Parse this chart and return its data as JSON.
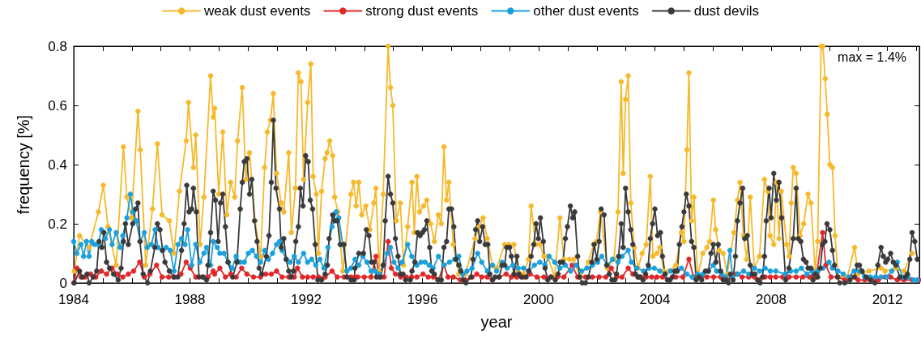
{
  "chart_data": {
    "type": "line",
    "xlabel": "year",
    "ylabel": "frequency [%]",
    "annotations": [
      "max = 1.4%"
    ],
    "legend": "top",
    "marker": "circle",
    "xlim": [
      1984,
      2013.1
    ],
    "ylim": [
      0,
      0.8
    ],
    "xticks": [
      1984,
      {
        "value": 1985,
        "label": null
      },
      {
        "value": 1986,
        "label": null
      },
      {
        "value": 1987,
        "label": null
      },
      1988,
      {
        "value": 1989,
        "label": null
      },
      {
        "value": 1990,
        "label": null
      },
      {
        "value": 1991,
        "label": null
      },
      1992,
      {
        "value": 1993,
        "label": null
      },
      {
        "value": 1994,
        "label": null
      },
      {
        "value": 1995,
        "label": null
      },
      1996,
      {
        "value": 1997,
        "label": null
      },
      {
        "value": 1998,
        "label": null
      },
      {
        "value": 1999,
        "label": null
      },
      2000,
      {
        "value": 2001,
        "label": null
      },
      {
        "value": 2002,
        "label": null
      },
      {
        "value": 2003,
        "label": null
      },
      2004,
      {
        "value": 2005,
        "label": null
      },
      {
        "value": 2006,
        "label": null
      },
      {
        "value": 2007,
        "label": null
      },
      2008,
      {
        "value": 2009,
        "label": null
      },
      {
        "value": 2010,
        "label": null
      },
      {
        "value": 2011,
        "label": null
      },
      2012,
      {
        "value": 2013,
        "label": null
      }
    ],
    "yticks": [
      0,
      0.2,
      0.4,
      0.6,
      0.8
    ],
    "series": [
      {
        "name": "weak dust events",
        "color": "#f6b92c",
        "x": [
          1984.02,
          1984.2,
          1984.53,
          1984.85,
          1985.02,
          1985.18,
          1985.46,
          1985.71,
          1985.83,
          1985.99,
          1986.21,
          1986.29,
          1986.48,
          1986.71,
          1986.88,
          1987.04,
          1987.29,
          1987.45,
          1987.64,
          1987.87,
          1987.95,
          1988.12,
          1988.2,
          1988.35,
          1988.48,
          1988.71,
          1988.8,
          1988.85,
          1988.99,
          1989.13,
          1989.27,
          1989.4,
          1989.54,
          1989.64,
          1989.8,
          1989.92,
          1990.05,
          1990.24,
          1990.43,
          1990.57,
          1990.66,
          1990.77,
          1990.87,
          1990.98,
          1991.14,
          1991.23,
          1991.4,
          1991.49,
          1991.63,
          1991.73,
          1991.82,
          1991.91,
          1992.05,
          1992.16,
          1992.24,
          1992.35,
          1992.42,
          1992.53,
          1992.65,
          1992.72,
          1992.81,
          1992.91,
          1992.98,
          1993.09,
          1993.26,
          1993.54,
          1993.63,
          1993.72,
          1993.81,
          1993.91,
          1994.05,
          1994.19,
          1994.33,
          1994.4,
          1994.51,
          1994.65,
          1994.82,
          1994.9,
          1994.98,
          1995.1,
          1995.24,
          1995.35,
          1995.49,
          1995.64,
          1995.72,
          1995.81,
          1995.9,
          1996.04,
          1996.15,
          1996.28,
          1996.41,
          1996.55,
          1996.65,
          1996.74,
          1996.83,
          1996.91,
          1997.06,
          1997.25,
          1997.48,
          1997.81,
          1997.95,
          1998.09,
          1998.23,
          1998.41,
          1998.55,
          1998.83,
          1998.97,
          1999.15,
          1999.29,
          1999.48,
          1999.65,
          1999.74,
          1999.9,
          2000.04,
          2000.18,
          2000.31,
          2000.55,
          2000.73,
          2000.87,
          2001.06,
          2001.2,
          2001.43,
          2001.71,
          2001.89,
          2001.99,
          2002.13,
          2002.36,
          2002.59,
          2002.73,
          2002.84,
          2002.91,
          2002.99,
          2003.08,
          2003.17,
          2003.29,
          2003.42,
          2003.56,
          2003.7,
          2003.84,
          2003.93,
          2004.07,
          2004.17,
          2004.31,
          2004.49,
          2004.72,
          2004.91,
          2005,
          2005.1,
          2005.17,
          2005.26,
          2005.34,
          2005.47,
          2005.65,
          2005.79,
          2005.88,
          2006.01,
          2006.09,
          2006.21,
          2006.35,
          2006.49,
          2006.72,
          2006.84,
          2006.93,
          2007.05,
          2007.16,
          2007.28,
          2007.42,
          2007.6,
          2007.77,
          2007.88,
          2007.96,
          2008.09,
          2008.18,
          2008.27,
          2008.35,
          2008.53,
          2008.62,
          2008.69,
          2008.76,
          2008.86,
          2009,
          2009.12,
          2009.27,
          2009.37,
          2009.51,
          2009.6,
          2009.72,
          2009.78,
          2009.86,
          2009.93,
          2010.02,
          2010.11,
          2010.2,
          2010.3,
          2010.62,
          2010.87,
          2010.99,
          2011.36,
          2011.78,
          2011.92,
          2012.29,
          2012.57,
          2012.85
        ],
        "values": [
          0.04,
          0.16,
          0.12,
          0.24,
          0.33,
          0.19,
          0.06,
          0.46,
          0.29,
          0.22,
          0.58,
          0.45,
          0.06,
          0.25,
          0.47,
          0.23,
          0.21,
          0.1,
          0.31,
          0.48,
          0.61,
          0.39,
          0.5,
          0.13,
          0.29,
          0.7,
          0.56,
          0.59,
          0.3,
          0.51,
          0.23,
          0.34,
          0.29,
          0.48,
          0.66,
          0.35,
          0.44,
          0.21,
          0.09,
          0.39,
          0.51,
          0.55,
          0.64,
          0.37,
          0.27,
          0.24,
          0.44,
          0.17,
          0.32,
          0.71,
          0.68,
          0.35,
          0.61,
          0.74,
          0.36,
          0.3,
          0.1,
          0.31,
          0.42,
          0.44,
          0.48,
          0.43,
          0.29,
          0.24,
          0.04,
          0.3,
          0.34,
          0.26,
          0.34,
          0.23,
          0.26,
          0.18,
          0.27,
          0.32,
          0.04,
          0.3,
          0.8,
          0.66,
          0.6,
          0.21,
          0.27,
          0.06,
          0.19,
          0.34,
          0.17,
          0.36,
          0.24,
          0.26,
          0.28,
          0.2,
          0.14,
          0.23,
          0.2,
          0.46,
          0.28,
          0.34,
          0.13,
          0.03,
          0.03,
          0.15,
          0.19,
          0.22,
          0.15,
          0.06,
          0.05,
          0.13,
          0.13,
          0.13,
          0.04,
          0.03,
          0.08,
          0.26,
          0.13,
          0.13,
          0.09,
          0.09,
          0.02,
          0.22,
          0.08,
          0.08,
          0.08,
          0.02,
          0.07,
          0.13,
          0.14,
          0.24,
          0.05,
          0.08,
          0.24,
          0.68,
          0.37,
          0.62,
          0.7,
          0.27,
          0.12,
          0.05,
          0.1,
          0.13,
          0.36,
          0.09,
          0.1,
          0.12,
          0.04,
          0.04,
          0.06,
          0.17,
          0.14,
          0.45,
          0.71,
          0.21,
          0.29,
          0.02,
          0.1,
          0.12,
          0.14,
          0.28,
          0.18,
          0.11,
          0.1,
          0.03,
          0.17,
          0.28,
          0.34,
          0.16,
          0.08,
          0.29,
          0.05,
          0.09,
          0.35,
          0.31,
          0.16,
          0.13,
          0.34,
          0.15,
          0.31,
          0.13,
          0.09,
          0.27,
          0.39,
          0.37,
          0.16,
          0.2,
          0.3,
          0.27,
          0.04,
          0.14,
          0.8,
          0.8,
          0.69,
          0.57,
          0.4,
          0.39,
          0.16,
          0.02,
          0.02,
          0.12,
          0.03,
          0.04,
          0.05,
          0.04,
          0.05,
          0.04,
          0.1
        ]
      },
      {
        "name": "strong dust events",
        "color": "#e0282a",
        "x": [
          1984,
          1984.11,
          1984.25,
          1984.39,
          1984.58,
          1984.76,
          1984.95,
          1985.13,
          1985.32,
          1985.5,
          1985.69,
          1985.88,
          1986.06,
          1986.27,
          1986.43,
          1986.62,
          1986.85,
          1987.04,
          1987.27,
          1987.45,
          1987.69,
          1987.87,
          1988.01,
          1988.2,
          1988.43,
          1988.62,
          1988.8,
          1988.85,
          1989.03,
          1989.22,
          1989.4,
          1989.59,
          1989.78,
          1989.96,
          1990.19,
          1990.43,
          1990.61,
          1990.8,
          1990.98,
          1991.17,
          1991.4,
          1991.59,
          1991.7,
          1991.87,
          1992.05,
          1992.24,
          1992.42,
          1992.65,
          1992.89,
          1993.07,
          1993.3,
          1993.54,
          1993.68,
          1993.77,
          1994,
          1994.23,
          1994.4,
          1994.51,
          1994.68,
          1994.82,
          1994.93,
          1995.07,
          1995.25,
          1995.44,
          1995.63,
          1995.81,
          1996.02,
          1996.2,
          1996.37,
          1996.55,
          1996.74,
          1996.88,
          1997.06,
          1997.3,
          1997.48,
          1997.71,
          1997.87,
          1998.04,
          1998.23,
          1998.41,
          1998.64,
          1998.88,
          1999.06,
          1999.25,
          1999.48,
          1999.71,
          1999.94,
          2000.18,
          2000.41,
          2000.64,
          2000.87,
          2001.15,
          2001.34,
          2001.61,
          2001.85,
          2002.08,
          2002.31,
          2002.5,
          2002.68,
          2002.87,
          2003.08,
          2003.24,
          2003.42,
          2003.52,
          2003.7,
          2003.89,
          2004.07,
          2004.26,
          2004.49,
          2004.72,
          2004.96,
          2005.17,
          2005.33,
          2005.56,
          2005.79,
          2006.02,
          2006.26,
          2006.44,
          2006.63,
          2006.81,
          2007,
          2007.23,
          2007.42,
          2007.6,
          2007.79,
          2007.97,
          2008.16,
          2008.39,
          2008.62,
          2008.86,
          2009.09,
          2009.32,
          2009.55,
          2009.77,
          2009.88,
          2010.06,
          2010.3,
          2010.53,
          2010.76,
          2010.99,
          2011.22,
          2011.46,
          2011.69,
          2011.92,
          2012.11,
          2012.34,
          2012.57,
          2012.85,
          2013.08
        ],
        "values": [
          0,
          0.05,
          0.02,
          0.02,
          0.03,
          0.02,
          0.04,
          0.03,
          0.05,
          0.03,
          0.02,
          0.03,
          0.04,
          0.07,
          0.02,
          0.03,
          0.06,
          0.02,
          0.02,
          0.02,
          0.03,
          0.07,
          0.05,
          0.02,
          0.02,
          0.02,
          0.04,
          0.03,
          0.05,
          0.02,
          0.03,
          0.02,
          0.05,
          0.03,
          0.02,
          0.02,
          0.03,
          0.03,
          0.04,
          0.02,
          0.02,
          0.02,
          0.05,
          0.02,
          0.02,
          0.02,
          0.02,
          0.02,
          0.04,
          0.02,
          0.02,
          0.02,
          0.02,
          0.02,
          0.02,
          0.02,
          0.09,
          0.02,
          0.02,
          0.14,
          0.05,
          0.03,
          0.02,
          0.02,
          0.02,
          0.02,
          0.03,
          0.02,
          0.02,
          0.01,
          0.06,
          0.02,
          0.02,
          0.01,
          0.01,
          0.02,
          0.03,
          0.02,
          0.02,
          0.01,
          0.02,
          0.03,
          0.02,
          0.02,
          0.02,
          0.03,
          0.02,
          0.02,
          0.02,
          0.02,
          0.02,
          0.06,
          0.02,
          0.02,
          0.02,
          0.02,
          0.02,
          0.05,
          0.02,
          0.02,
          0.05,
          0.03,
          0.02,
          0.02,
          0.02,
          0.02,
          0.02,
          0.02,
          0.01,
          0.02,
          0.02,
          0.08,
          0.02,
          0.02,
          0.02,
          0.02,
          0.02,
          0.01,
          0.02,
          0.03,
          0.02,
          0.02,
          0.02,
          0.01,
          0.02,
          0.02,
          0.02,
          0.02,
          0.02,
          0.02,
          0.02,
          0.02,
          0.02,
          0.17,
          0.06,
          0.02,
          0.02,
          0.01,
          0.02,
          0.01,
          0.01,
          0.01,
          0.01,
          0.02,
          0.02,
          0.01,
          0.01,
          0.01,
          0.01
        ]
      },
      {
        "name": "other dust events",
        "color": "#1aa0dc",
        "x": [
          1984,
          1984.11,
          1984.25,
          1984.34,
          1984.44,
          1984.53,
          1984.62,
          1984.72,
          1984.85,
          1984.95,
          1985.09,
          1985.23,
          1985.32,
          1985.46,
          1985.6,
          1985.69,
          1985.83,
          1985.95,
          1986.04,
          1986.15,
          1986.29,
          1986.43,
          1986.53,
          1986.67,
          1986.8,
          1986.9,
          1987.04,
          1987.18,
          1987.32,
          1987.45,
          1987.59,
          1987.71,
          1987.83,
          1987.92,
          1988.06,
          1988.2,
          1988.34,
          1988.48,
          1988.57,
          1988.71,
          1988.8,
          1988.94,
          1989.03,
          1989.17,
          1989.31,
          1989.45,
          1989.59,
          1989.73,
          1989.87,
          1990.01,
          1990.15,
          1990.29,
          1990.43,
          1990.57,
          1990.7,
          1990.84,
          1990.98,
          1991.08,
          1991.17,
          1991.31,
          1991.45,
          1991.59,
          1991.73,
          1991.91,
          1992.05,
          1992.19,
          1992.33,
          1992.47,
          1992.61,
          1992.75,
          1992.89,
          1993.03,
          1993.12,
          1993.26,
          1993.4,
          1993.54,
          1993.68,
          1993.81,
          1993.95,
          1994.09,
          1994.23,
          1994.37,
          1994.51,
          1994.65,
          1994.79,
          1994.9,
          1995.02,
          1995.16,
          1995.3,
          1995.49,
          1995.63,
          1995.81,
          1995.95,
          1996.09,
          1996.23,
          1996.37,
          1996.55,
          1996.74,
          1996.93,
          1997.11,
          1997.25,
          1997.39,
          1997.53,
          1997.71,
          1997.9,
          1998.04,
          1998.23,
          1998.41,
          1998.55,
          1998.74,
          1998.92,
          1999.11,
          1999.29,
          1999.48,
          1999.66,
          1999.85,
          2000.04,
          2000.22,
          2000.36,
          2000.55,
          2000.73,
          2000.92,
          2001.1,
          2001.29,
          2001.48,
          2001.66,
          2001.85,
          2002.03,
          2002.17,
          2002.36,
          2002.54,
          2002.73,
          2002.87,
          2003.08,
          2003.19,
          2003.38,
          2003.61,
          2003.8,
          2003.98,
          2004.17,
          2004.35,
          2004.54,
          2004.72,
          2004.91,
          2005.1,
          2005.28,
          2005.47,
          2005.65,
          2005.84,
          2006.01,
          2006.12,
          2006.3,
          2006.44,
          2006.58,
          2006.67,
          2006.86,
          2007.05,
          2007.23,
          2007.42,
          2007.6,
          2007.79,
          2007.97,
          2008.16,
          2008.48,
          2008.67,
          2008.86,
          2009.04,
          2009.23,
          2009.41,
          2009.6,
          2009.78,
          2009.99,
          2010.11,
          2010.3,
          2010.48,
          2010.67,
          2010.85,
          2011.04,
          2011.22,
          2011.41,
          2011.6,
          2011.78,
          2011.97,
          2012.15,
          2012.34,
          2012.52,
          2012.71,
          2012.9,
          2013.03
        ],
        "values": [
          0.14,
          0.1,
          0.13,
          0.09,
          0.14,
          0.09,
          0.14,
          0.13,
          0.13,
          0.18,
          0.15,
          0.18,
          0.13,
          0.17,
          0.12,
          0.16,
          0.22,
          0.3,
          0.24,
          0.21,
          0.14,
          0.17,
          0.12,
          0.13,
          0.18,
          0.12,
          0.11,
          0.12,
          0.11,
          0.04,
          0.13,
          0.15,
          0.13,
          0.18,
          0.06,
          0.13,
          0.07,
          0.1,
          0.12,
          0.06,
          0.14,
          0.12,
          0.1,
          0.1,
          0.07,
          0.05,
          0.09,
          0.07,
          0.07,
          0.1,
          0.11,
          0.09,
          0.07,
          0.11,
          0.08,
          0.1,
          0.13,
          0.14,
          0.11,
          0.08,
          0.07,
          0.09,
          0.07,
          0.1,
          0.07,
          0.08,
          0.06,
          0.08,
          0.05,
          0.12,
          0.19,
          0.24,
          0.22,
          0.13,
          0.04,
          0.05,
          0.08,
          0.06,
          0.09,
          0.07,
          0.04,
          0.04,
          0.03,
          0.06,
          0.1,
          0.12,
          0.07,
          0.05,
          0.07,
          0.13,
          0.09,
          0.06,
          0.07,
          0.07,
          0.06,
          0.05,
          0.09,
          0.06,
          0.07,
          0.08,
          0.09,
          0.03,
          0.04,
          0.05,
          0.1,
          0.07,
          0.04,
          0.06,
          0.04,
          0.07,
          0.05,
          0.06,
          0.05,
          0.05,
          0.04,
          0.06,
          0.07,
          0.06,
          0.09,
          0.07,
          0.05,
          0.06,
          0.04,
          0.06,
          0.04,
          0.05,
          0.06,
          0.07,
          0.09,
          0.06,
          0.08,
          0.07,
          0.09,
          0.11,
          0.07,
          0.05,
          0.04,
          0.05,
          0.05,
          0.04,
          0.03,
          0.04,
          0.04,
          0.05,
          0.03,
          0.02,
          0.03,
          0.03,
          0.04,
          0.06,
          0.04,
          0.03,
          0.02,
          0.11,
          0.02,
          0.03,
          0.04,
          0.03,
          0.05,
          0.04,
          0.05,
          0.04,
          0.04,
          0.03,
          0.04,
          0.04,
          0.05,
          0.03,
          0.04,
          0.04,
          0.05,
          0.07,
          0.05,
          0.04,
          0.03,
          0.02,
          0.04,
          0.04,
          0.02,
          0.02,
          0.02,
          0.02,
          0.02,
          0.04,
          0.07,
          0.02,
          0.02,
          0.01,
          0.01
        ]
      },
      {
        "name": "dust devils",
        "color": "#3a3a3a",
        "x": [
          1984.02,
          1984.2,
          1984.3,
          1984.46,
          1984.53,
          1984.67,
          1984.79,
          1984.87,
          1984.97,
          1985.04,
          1985.13,
          1985.23,
          1985.37,
          1985.53,
          1985.63,
          1985.71,
          1985.78,
          1985.88,
          1986.03,
          1986.13,
          1986.21,
          1986.28,
          1986.39,
          1986.54,
          1986.64,
          1986.79,
          1986.88,
          1986.97,
          1987.06,
          1987.14,
          1987.29,
          1987.45,
          1987.58,
          1987.71,
          1987.8,
          1987.89,
          1987.97,
          1988.06,
          1988.12,
          1988.22,
          1988.31,
          1988.46,
          1988.57,
          1988.62,
          1988.71,
          1988.8,
          1988.88,
          1988.97,
          1989.05,
          1989.13,
          1989.22,
          1989.31,
          1989.47,
          1989.62,
          1989.73,
          1989.8,
          1989.87,
          1989.96,
          1990.05,
          1990.13,
          1990.22,
          1990.31,
          1990.38,
          1990.47,
          1990.63,
          1990.72,
          1990.8,
          1990.87,
          1990.96,
          1991.08,
          1991.14,
          1991.23,
          1991.31,
          1991.4,
          1991.48,
          1991.56,
          1991.64,
          1991.73,
          1991.8,
          1991.89,
          1991.98,
          1992.07,
          1992.14,
          1992.22,
          1992.31,
          1992.4,
          1992.53,
          1992.65,
          1992.73,
          1992.79,
          1992.91,
          1992.98,
          1993.07,
          1993.17,
          1993.3,
          1993.4,
          1993.54,
          1993.65,
          1993.68,
          1993.81,
          1993.97,
          1994.07,
          1994.16,
          1994.25,
          1994.33,
          1994.42,
          1994.56,
          1994.65,
          1994.72,
          1994.82,
          1994.9,
          1994.98,
          1995.07,
          1995.16,
          1995.24,
          1995.33,
          1995.42,
          1995.58,
          1995.64,
          1995.74,
          1995.83,
          1995.92,
          1996,
          1996.07,
          1996.15,
          1996.25,
          1996.32,
          1996.41,
          1996.53,
          1996.65,
          1996.74,
          1996.83,
          1996.91,
          1997,
          1997.08,
          1997.16,
          1997.25,
          1997.32,
          1997.41,
          1997.5,
          1997.67,
          1997.74,
          1997.83,
          1997.9,
          1997.97,
          1998.07,
          1998.16,
          1998.25,
          1998.32,
          1998.41,
          1998.5,
          1998.64,
          1998.74,
          1998.83,
          1998.9,
          1999,
          1999.06,
          1999.15,
          1999.25,
          1999.32,
          1999.41,
          1999.57,
          1999.66,
          1999.74,
          1999.83,
          1999.91,
          1999.99,
          2000.06,
          2000.16,
          2000.22,
          2000.31,
          2000.43,
          2000.57,
          2000.67,
          2000.74,
          2000.83,
          2000.92,
          2000.99,
          2001.09,
          2001.17,
          2001.24,
          2001.34,
          2001.41,
          2001.5,
          2001.61,
          2001.71,
          2001.83,
          2001.91,
          2002,
          2002.08,
          2002.15,
          2002.25,
          2002.34,
          2002.43,
          2002.52,
          2002.62,
          2002.68,
          2002.75,
          2002.84,
          2002.91,
          2002.99,
          2003.08,
          2003.17,
          2003.24,
          2003.33,
          2003.42,
          2003.47,
          2003.59,
          2003.68,
          2003.77,
          2003.84,
          2003.92,
          2004,
          2004.09,
          2004.19,
          2004.26,
          2004.35,
          2004.43,
          2004.52,
          2004.6,
          2004.68,
          2004.77,
          2004.84,
          2004.93,
          2005,
          2005.08,
          2005.17,
          2005.26,
          2005.34,
          2005.42,
          2005.51,
          2005.61,
          2005.74,
          2005.84,
          2005.93,
          2006.01,
          2006.1,
          2006.18,
          2006.26,
          2006.35,
          2006.44,
          2006.53,
          2006.6,
          2006.69,
          2006.77,
          2006.84,
          2006.93,
          2007.02,
          2007.09,
          2007.18,
          2007.28,
          2007.35,
          2007.44,
          2007.53,
          2007.62,
          2007.7,
          2007.77,
          2007.83,
          2007.93,
          2008,
          2008.09,
          2008.18,
          2008.27,
          2008.36,
          2008.5,
          2008.61,
          2008.76,
          2008.86,
          2008.93,
          2009.02,
          2009.11,
          2009.2,
          2009.27,
          2009.37,
          2009.44,
          2009.52,
          2009.6,
          2009.69,
          2009.77,
          2009.85,
          2009.92,
          2010.02,
          2010.11,
          2010.18,
          2010.28,
          2010.36,
          2010.53,
          2010.71,
          2010.87,
          2010.96,
          2011.04,
          2011.13,
          2011.27,
          2011.41,
          2011.57,
          2011.67,
          2011.78,
          2011.86,
          2011.94,
          2012.01,
          2012.11,
          2012.2,
          2012.29,
          2012.43,
          2012.62,
          2012.69,
          2012.77,
          2012.85,
          2012.94,
          2013.03
        ],
        "values": [
          0,
          0.04,
          0.02,
          0.03,
          0,
          0.02,
          0.04,
          0.14,
          0.12,
          0.17,
          0.07,
          0.05,
          0.03,
          0.01,
          0.05,
          0.14,
          0.2,
          0.13,
          0.2,
          0.25,
          0.27,
          0.14,
          0.03,
          0,
          0.04,
          0.12,
          0.2,
          0.18,
          0.11,
          0.07,
          0.04,
          0.02,
          0.02,
          0.11,
          0.2,
          0.33,
          0.24,
          0.25,
          0.32,
          0.24,
          0.02,
          0.02,
          0.01,
          0.06,
          0.17,
          0.31,
          0.28,
          0.14,
          0.27,
          0.3,
          0.19,
          0.07,
          0.02,
          0.07,
          0.25,
          0.34,
          0.41,
          0.42,
          0.3,
          0.35,
          0.21,
          0.14,
          0.05,
          0.03,
          0.09,
          0.16,
          0.34,
          0.55,
          0.32,
          0.25,
          0.12,
          0.15,
          0.08,
          0.04,
          0.02,
          0.04,
          0.14,
          0.19,
          0.32,
          0.26,
          0.43,
          0.41,
          0.28,
          0.25,
          0.13,
          0.01,
          0.01,
          0.03,
          0.06,
          0.15,
          0.23,
          0.21,
          0.21,
          0.13,
          0.13,
          0.02,
          0.01,
          0.01,
          0.05,
          0.1,
          0.1,
          0.18,
          0.16,
          0.07,
          0.07,
          0.02,
          0.02,
          0.06,
          0.21,
          0.36,
          0.3,
          0.27,
          0.15,
          0.09,
          0.03,
          0.03,
          0.01,
          0.01,
          0.04,
          0.07,
          0.17,
          0.16,
          0.17,
          0.18,
          0.21,
          0.12,
          0.04,
          0.03,
          0.01,
          0.01,
          0.12,
          0.14,
          0.25,
          0.25,
          0.19,
          0.08,
          0.06,
          0.04,
          0.01,
          0,
          0.02,
          0.08,
          0.18,
          0.21,
          0.14,
          0.19,
          0.13,
          0.13,
          0.03,
          0.01,
          0.02,
          0.02,
          0.06,
          0.06,
          0.12,
          0.12,
          0.09,
          0.03,
          0.09,
          0.03,
          0.02,
          0.02,
          0.04,
          0.09,
          0.13,
          0.2,
          0.15,
          0.22,
          0.14,
          0.05,
          0.01,
          0.02,
          0.01,
          0.03,
          0.07,
          0.07,
          0.15,
          0.19,
          0.26,
          0.22,
          0.24,
          0.09,
          0.02,
          0,
          0,
          0.02,
          0.07,
          0.13,
          0.08,
          0.14,
          0.25,
          0.23,
          0.06,
          0.03,
          0.01,
          0.01,
          0.03,
          0.09,
          0.2,
          0.12,
          0.32,
          0.24,
          0.18,
          0.13,
          0.03,
          0.02,
          0.02,
          0.01,
          0.03,
          0.06,
          0.15,
          0.2,
          0.25,
          0.16,
          0.17,
          0.09,
          0.03,
          0.01,
          0.01,
          0.02,
          0.04,
          0.04,
          0.13,
          0.19,
          0.24,
          0.3,
          0.26,
          0.14,
          0.12,
          0.01,
          0.02,
          0.01,
          0.04,
          0.04,
          0.1,
          0.13,
          0.07,
          0.13,
          0.04,
          0.01,
          0.01,
          0,
          0.03,
          0.01,
          0.09,
          0.21,
          0.27,
          0.32,
          0.15,
          0.16,
          0.06,
          0.03,
          0.03,
          0.01,
          0,
          0.02,
          0.09,
          0.21,
          0.32,
          0.22,
          0.37,
          0.28,
          0.34,
          0.22,
          0.01,
          0.05,
          0.15,
          0.32,
          0.15,
          0.14,
          0.08,
          0.07,
          0.05,
          0.05,
          0.01,
          0.03,
          0.02,
          0.05,
          0.13,
          0.14,
          0.2,
          0.18,
          0.11,
          0.06,
          0.02,
          0,
          0,
          0.01,
          0.02,
          0.06,
          0.06,
          0.04,
          0.02,
          0.01,
          0,
          0.06,
          0.12,
          0.09,
          0.07,
          0.08,
          0.1,
          0.07,
          0.06,
          0.02,
          0.02,
          0.03,
          0.08,
          0.17,
          0.14,
          0.08
        ]
      }
    ]
  }
}
